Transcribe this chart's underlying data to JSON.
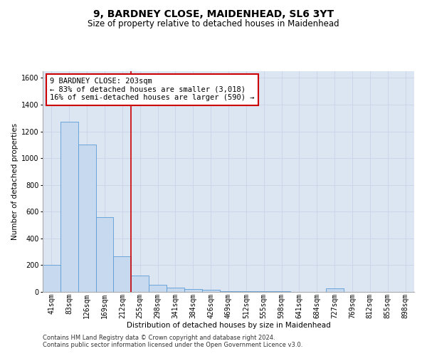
{
  "title": "9, BARDNEY CLOSE, MAIDENHEAD, SL6 3YT",
  "subtitle": "Size of property relative to detached houses in Maidenhead",
  "xlabel": "Distribution of detached houses by size in Maidenhead",
  "ylabel": "Number of detached properties",
  "categories": [
    "41sqm",
    "83sqm",
    "126sqm",
    "169sqm",
    "212sqm",
    "255sqm",
    "298sqm",
    "341sqm",
    "384sqm",
    "426sqm",
    "469sqm",
    "512sqm",
    "555sqm",
    "598sqm",
    "641sqm",
    "684sqm",
    "727sqm",
    "769sqm",
    "812sqm",
    "855sqm",
    "898sqm"
  ],
  "values": [
    200,
    1270,
    1100,
    560,
    265,
    120,
    55,
    30,
    20,
    15,
    5,
    5,
    3,
    3,
    0,
    0,
    25,
    0,
    0,
    0,
    0
  ],
  "bar_color": "#c6d9ee",
  "bar_edge_color": "#5b9bd5",
  "property_line_x": 4.5,
  "annotation_text": "9 BARDNEY CLOSE: 203sqm\n← 83% of detached houses are smaller (3,018)\n16% of semi-detached houses are larger (590) →",
  "annotation_box_color": "#ffffff",
  "annotation_box_edge": "#cc0000",
  "vline_color": "#cc0000",
  "ylim": [
    0,
    1650
  ],
  "yticks": [
    0,
    200,
    400,
    600,
    800,
    1000,
    1200,
    1400,
    1600
  ],
  "grid_color": "#c8d4e8",
  "bg_color": "#dce6f2",
  "footer1": "Contains HM Land Registry data © Crown copyright and database right 2024.",
  "footer2": "Contains public sector information licensed under the Open Government Licence v3.0.",
  "title_fontsize": 10,
  "subtitle_fontsize": 8.5,
  "axis_label_fontsize": 7.5,
  "tick_fontsize": 7,
  "annotation_fontsize": 7.5,
  "footer_fontsize": 6
}
